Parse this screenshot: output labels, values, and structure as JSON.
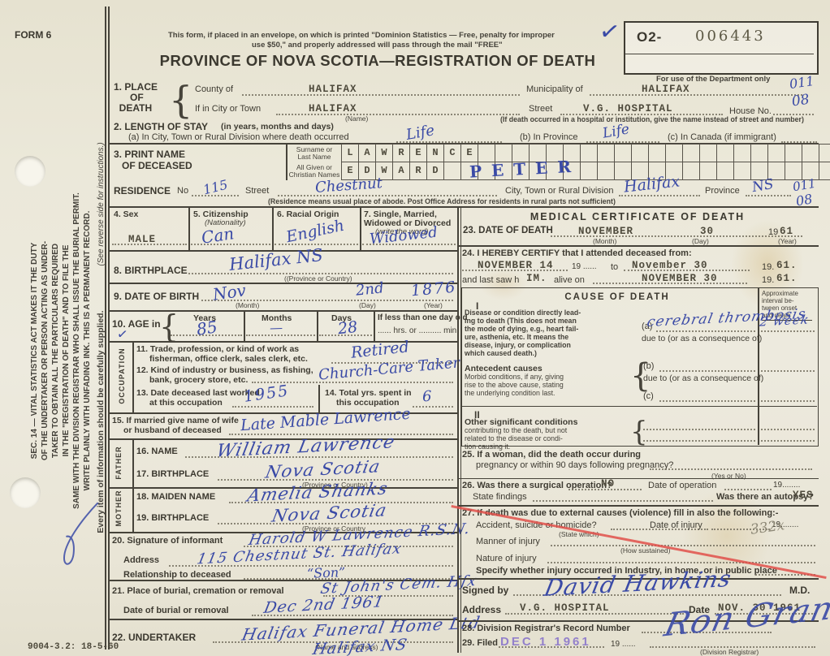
{
  "colors": {
    "blue_ink": "#3a4aa6",
    "red_line": "#e0504a",
    "stamp_purple": "#8570cb",
    "pencil": "#8f8a78",
    "paper": "#ebe8d9"
  },
  "marks": {
    "check": "✓"
  },
  "header": {
    "form_no": "FORM 6",
    "mail_note_1": "This form, if placed in an envelope, on which is printed \"Dominion Statistics — Free, penalty for improper",
    "mail_note_2": "use $50,\" and properly addressed will pass through the mail \"FREE\"",
    "title": "PROVINCE OF NOVA SCOTIA—REGISTRATION OF DEATH",
    "serial_prefix": "O2-",
    "serial_number": "006443",
    "dept_only": "For use of the Department only"
  },
  "sidebar": {
    "sec14": "SEC. 14 — VITAL STATISTICS ACT MAKES IT THE DUTY\nOF THE UNDERTAKER OR PERSON ACTING AS UNDER-\nTAKER TO OBTAIN ALL THE PARTICULARS REQUIRED\nIN THE \"REGISTRATION OF DEATH\" AND TO FILE THE\nSAME WITH THE DIVISION REGISTRAR WHO SHALL ISSUE THE BURIAL PERMIT.\nWRITE PLAINLY WITH UNFADING INK. THIS IS A PERMANENT RECORD.",
    "supply_note": "Every item of information should be carefully supplied.",
    "reverse_note": "(See reverse side for instructions.)",
    "bottom_code": "9004-3.2: 18-5-60"
  },
  "place": {
    "label": "1. PLACE\n      OF\n  DEATH",
    "county_label": "County of",
    "county_value": "HALIFAX",
    "municipality_label": "Municipality of",
    "municipality_value": "HALIFAX",
    "city_label": "If in City or Town",
    "city_value": "HALIFAX",
    "city_note": "(Name)",
    "street_label": "Street",
    "street_value": "V.G. HOSPITAL",
    "house_label": "House No.",
    "street_note": "(If death occurred in a hospital or institution, give the name instead of street and number)",
    "code1": "011",
    "code2": "08"
  },
  "stay": {
    "label": "2. LENGTH OF STAY",
    "label_paren": "(in years, months and days)",
    "a_label": "(a) In City, Town or Rural Division where death occurred",
    "a_value": "Life",
    "b_label": "(b) In Province",
    "b_value": "Life",
    "c_label": "(c) In Canada (if immigrant)"
  },
  "name": {
    "label1": "3. PRINT NAME",
    "label2": "OF DECEASED",
    "surname_label": "Surname or\nLast Name",
    "given_label": "All Given or\nChristian Names",
    "surname_boxes": "LAWRENCE",
    "given_boxes": "EDWARD",
    "given_hw": "PETER"
  },
  "residence": {
    "label": "RESIDENCE",
    "no_label": "No",
    "no_value": "115",
    "street_label": "Street",
    "street_value": "Chestnut",
    "city_label": "City, Town or Rural Division",
    "city_value": "Halifax",
    "province_label": "Province",
    "province_value": "NS",
    "note": "(Residence means usual place of abode. Post Office Address for residents in rural parts not sufficient)",
    "code1": "011",
    "code2": "08"
  },
  "vitals": {
    "sex_label": "4. Sex",
    "sex_value": "MALE",
    "citizenship_label": "5. Citizenship",
    "citizenship_sub": "(Nationality)",
    "citizenship_value": "Can",
    "racial_label": "6. Racial Origin",
    "racial_value": "English",
    "marital_label": "7. Single, Married,",
    "marital_sub": "Widowed or Divorced",
    "marital_sub2": "(write the word)",
    "marital_value": "Widowed"
  },
  "birthplace": {
    "label": "8. BIRTHPLACE",
    "value": "Halifax NS",
    "note": "((Province or Country)"
  },
  "birth": {
    "label": "9. DATE OF BIRTH",
    "month": "Nov",
    "month_note": "(Month)",
    "day": "2nd",
    "day_note": "(Day)",
    "year": "1876",
    "year_note": "(Year)"
  },
  "age": {
    "label": "10. AGE in",
    "years_label": "Years",
    "years": "85",
    "months_label": "Months",
    "months": "—",
    "days_label": "Days",
    "days": "28",
    "less_label": "If less than one day old",
    "less_line": "...... hrs. or .......... min."
  },
  "occupation": {
    "side_label": "OCCUPATION",
    "t11a": "11. Trade, profession, or kind of work as",
    "t11b": "fisherman, office clerk, sales clerk, etc.",
    "v11": "Retired",
    "t12a": "12. Kind of industry or business, as fishing,",
    "t12b": "bank, grocery store, etc.",
    "v12": "Church-Care Taker",
    "t13a": "13. Date deceased last worked",
    "t13b": "at this occupation",
    "v13": "1955",
    "t14a": "14. Total yrs. spent in",
    "t14b": "this occupation",
    "v14": "6"
  },
  "spouse": {
    "l1": "15. If married give name of wife",
    "l2": "or husband of deceased",
    "value": "Late Mable Lawrence"
  },
  "father": {
    "side_label": "FATHER",
    "name_label": "16. NAME",
    "name": "William Lawrence",
    "bp_label": "17. BIRTHPLACE",
    "bp": "Nova Scotia",
    "bp_note": "(Province or Country)"
  },
  "mother": {
    "side_label": "MOTHER",
    "name_label": "18. MAIDEN NAME",
    "name": "Amelia Shanks",
    "bp_label": "19. BIRTHPLACE",
    "bp": "Nova Scotia",
    "bp_note": "(Province or Country"
  },
  "informant": {
    "sig_label": "20. Signature of informant",
    "sig": "Harold W Lawrence R.S.N.",
    "addr_label": "Address",
    "addr": "115 Chestnut St. Halifax",
    "rel_label": "Relationship to deceased",
    "rel": "“Son”"
  },
  "burial": {
    "place_label": "21. Place of burial, cremation or removal",
    "place": "St John's Cem. Hfx",
    "date_label": "Date of burial or removal",
    "date": "Dec 2nd 1961"
  },
  "undertaker": {
    "label": "22. UNDERTAKER",
    "value": "Halifax Funeral Home Ltd",
    "value2": "Halifax NS",
    "note": "(Name and address)"
  },
  "medical": {
    "title": "MEDICAL CERTIFICATE OF DEATH",
    "d23_label": "23. DATE OF DEATH",
    "d23_month": "NOVEMBER",
    "d23_month_note": "(Month)",
    "d23_day": "30",
    "d23_day_note": "(Day)",
    "d23_pre": "19",
    "d23_year": "61",
    "d23_year_note": "(Year)",
    "c24_label": "24. I HEREBY CERTIFY that I attended deceased from:",
    "c24_from": "NOVEMBER 14",
    "c24_pre1": "19 ......",
    "c24_to_label": "to",
    "c24_to": "November 30",
    "c24_pre2": "19.",
    "c24_toyr": "61.",
    "c24_last1": "and last saw h",
    "c24_him": "IM.",
    "c24_last2": "alive on",
    "c24_on": "NOVEMBER 30",
    "c24_pre3": "19.",
    "c24_onyr": "61."
  },
  "cause": {
    "title": "CAUSE OF DEATH",
    "interval_head": "Approximate\ninterval be-\ntween onset\nand death",
    "roman1": "I",
    "disease_label": "Disease or condition directly lead-\ning to death (This does not mean\nthe mode of dying, e.g., heart fail-\nure, asthenia, etc. It means the\ndisease, injury, or complication\nwhich caused death.)",
    "a_label": "(a)",
    "a_value": "cerebral thrombosis",
    "interval_value": "2 week",
    "due1": "due to (or as a consequence of)",
    "antecedent_label": "Antecedent causes",
    "antecedent_sub": "Morbid conditions, if any, giving\nrise to the above cause, stating\nthe underlying condition last.",
    "b_label": "(b)",
    "due2": "due to (or as a consequence of)",
    "c_label": "(c)",
    "roman2": "II",
    "other_label": "Other significant conditions",
    "other_sub": "contributing to the death, but not\nrelated to the disease or condi-\ntion causing it."
  },
  "q25": {
    "l1": "25. If a woman, did the death occur during",
    "l2": "pregnancy or within 90 days following pregnancy?",
    "note": "(Yes or No)"
  },
  "q26": {
    "l1": "26. Was there a surgical operation?",
    "v1": "NO",
    "l2": "Date of operation",
    "pre": "19........",
    "l3": "State findings",
    "l4": "Was there an autopsy?",
    "v2": "YES"
  },
  "q27": {
    "l1": "27. If death was due to external causes (violence) fill in also the following:-",
    "l2": "Accident, suicide or homicide?",
    "l2n": "(State which)",
    "l3": "Date of injury",
    "pre": "19........",
    "pencil": "332x",
    "l4": "Manner of injury",
    "l4n": "(How sustained)",
    "l5": "Nature of injury",
    "l6": "Specify whether injury occurred in Industry, in home, or in public place"
  },
  "signed": {
    "label": "Signed by",
    "sig": "David Hawkins",
    "md": "M.D.",
    "addr_label": "Address",
    "addr": "V.G. HOSPITAL",
    "date_label": "Date",
    "date": "NOV. 30 1961"
  },
  "registrar": {
    "l28": "28. Division Registrar's Record Number",
    "l29": "29. Filed",
    "stamp": "DEC  1 1961",
    "pre": "19 ......",
    "note": "(Division Registrar)",
    "sig": "Ron Grant"
  }
}
